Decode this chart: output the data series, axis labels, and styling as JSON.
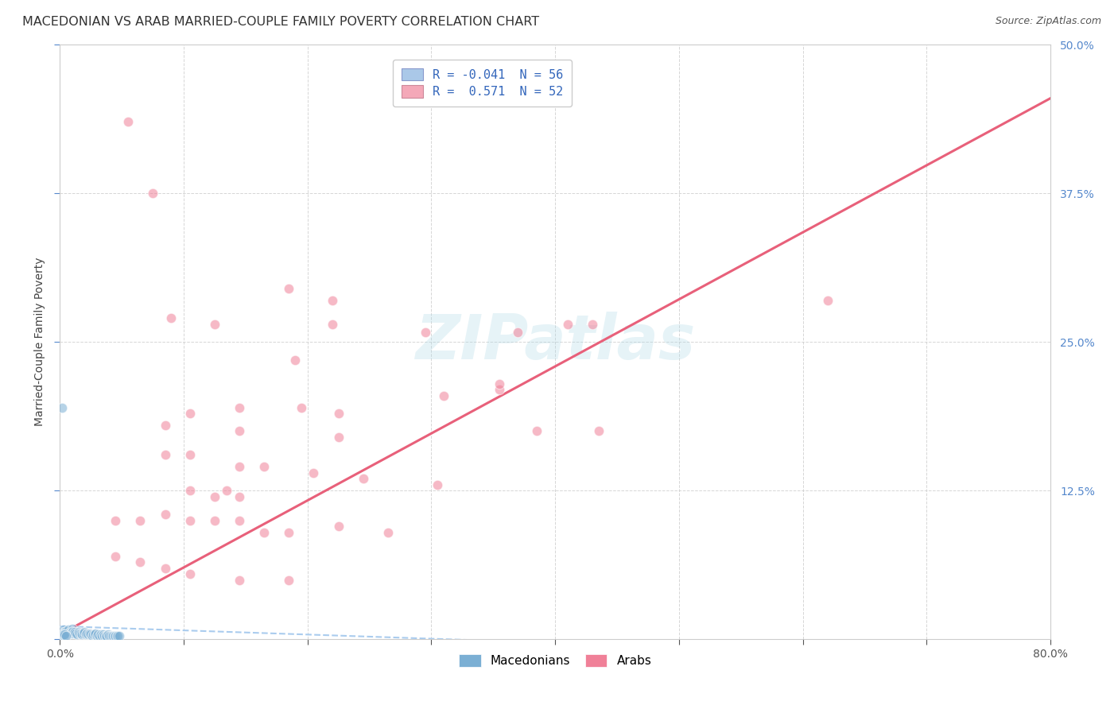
{
  "title": "MACEDONIAN VS ARAB MARRIED-COUPLE FAMILY POVERTY CORRELATION CHART",
  "source": "Source: ZipAtlas.com",
  "ylabel": "Married-Couple Family Poverty",
  "xlim": [
    0.0,
    0.8
  ],
  "ylim": [
    0.0,
    0.5
  ],
  "xticks": [
    0.0,
    0.1,
    0.2,
    0.3,
    0.4,
    0.5,
    0.6,
    0.7,
    0.8
  ],
  "yticks": [
    0.0,
    0.125,
    0.25,
    0.375,
    0.5
  ],
  "macedonian_color": "#7bafd4",
  "arab_color": "#f08098",
  "macedonian_line_color": "#aaccee",
  "arab_line_color": "#e8607a",
  "watermark": "ZIPatlas",
  "background_color": "#ffffff",
  "grid_color": "#cccccc",
  "legend_label_mac": "R = -0.041  N = 56",
  "legend_label_arab": "R =  0.571  N = 52",
  "legend_mac_color": "#aac8e8",
  "legend_arab_color": "#f4a8b8",
  "tick_color_y": "#5588cc",
  "tick_color_x": "#555555",
  "title_fontsize": 11.5,
  "axis_label_fontsize": 10,
  "tick_fontsize": 10,
  "legend_fontsize": 11,
  "arab_line_x0": 0.0,
  "arab_line_y0": 0.004,
  "arab_line_x1": 0.8,
  "arab_line_y1": 0.455,
  "mac_line_x0": 0.0,
  "mac_line_y0": 0.011,
  "mac_line_x1": 0.6,
  "mac_line_y1": -0.01,
  "macedonian_scatter": [
    [
      0.002,
      0.195
    ],
    [
      0.003,
      0.008
    ],
    [
      0.004,
      0.006
    ],
    [
      0.005,
      0.007
    ],
    [
      0.006,
      0.005
    ],
    [
      0.007,
      0.008
    ],
    [
      0.008,
      0.006
    ],
    [
      0.009,
      0.005
    ],
    [
      0.01,
      0.009
    ],
    [
      0.01,
      0.007
    ],
    [
      0.01,
      0.006
    ],
    [
      0.011,
      0.005
    ],
    [
      0.012,
      0.006
    ],
    [
      0.013,
      0.005
    ],
    [
      0.014,
      0.004
    ],
    [
      0.015,
      0.006
    ],
    [
      0.016,
      0.005
    ],
    [
      0.017,
      0.005
    ],
    [
      0.018,
      0.004
    ],
    [
      0.019,
      0.005
    ],
    [
      0.02,
      0.006
    ],
    [
      0.021,
      0.004
    ],
    [
      0.022,
      0.005
    ],
    [
      0.023,
      0.004
    ],
    [
      0.024,
      0.005
    ],
    [
      0.025,
      0.004
    ],
    [
      0.026,
      0.003
    ],
    [
      0.027,
      0.004
    ],
    [
      0.028,
      0.004
    ],
    [
      0.029,
      0.005
    ],
    [
      0.03,
      0.003
    ],
    [
      0.031,
      0.004
    ],
    [
      0.032,
      0.003
    ],
    [
      0.033,
      0.004
    ],
    [
      0.034,
      0.003
    ],
    [
      0.035,
      0.004
    ],
    [
      0.036,
      0.003
    ],
    [
      0.037,
      0.003
    ],
    [
      0.038,
      0.003
    ],
    [
      0.039,
      0.004
    ],
    [
      0.04,
      0.003
    ],
    [
      0.041,
      0.003
    ],
    [
      0.042,
      0.003
    ],
    [
      0.043,
      0.003
    ],
    [
      0.044,
      0.003
    ],
    [
      0.045,
      0.003
    ],
    [
      0.046,
      0.003
    ],
    [
      0.047,
      0.003
    ],
    [
      0.048,
      0.003
    ],
    [
      0.002,
      0.003
    ],
    [
      0.002,
      0.004
    ],
    [
      0.003,
      0.003
    ],
    [
      0.003,
      0.004
    ],
    [
      0.004,
      0.003
    ],
    [
      0.004,
      0.004
    ],
    [
      0.005,
      0.003
    ]
  ],
  "arab_scatter": [
    [
      0.055,
      0.435
    ],
    [
      0.075,
      0.375
    ],
    [
      0.185,
      0.295
    ],
    [
      0.22,
      0.285
    ],
    [
      0.09,
      0.27
    ],
    [
      0.125,
      0.265
    ],
    [
      0.22,
      0.265
    ],
    [
      0.43,
      0.265
    ],
    [
      0.37,
      0.258
    ],
    [
      0.295,
      0.258
    ],
    [
      0.19,
      0.235
    ],
    [
      0.31,
      0.205
    ],
    [
      0.355,
      0.21
    ],
    [
      0.355,
      0.215
    ],
    [
      0.41,
      0.265
    ],
    [
      0.62,
      0.285
    ],
    [
      0.105,
      0.19
    ],
    [
      0.145,
      0.195
    ],
    [
      0.195,
      0.195
    ],
    [
      0.225,
      0.19
    ],
    [
      0.085,
      0.18
    ],
    [
      0.145,
      0.175
    ],
    [
      0.225,
      0.17
    ],
    [
      0.085,
      0.155
    ],
    [
      0.105,
      0.155
    ],
    [
      0.145,
      0.145
    ],
    [
      0.165,
      0.145
    ],
    [
      0.205,
      0.14
    ],
    [
      0.245,
      0.135
    ],
    [
      0.105,
      0.125
    ],
    [
      0.135,
      0.125
    ],
    [
      0.125,
      0.12
    ],
    [
      0.145,
      0.12
    ],
    [
      0.305,
      0.13
    ],
    [
      0.045,
      0.1
    ],
    [
      0.065,
      0.1
    ],
    [
      0.085,
      0.105
    ],
    [
      0.105,
      0.1
    ],
    [
      0.125,
      0.1
    ],
    [
      0.145,
      0.1
    ],
    [
      0.165,
      0.09
    ],
    [
      0.185,
      0.09
    ],
    [
      0.225,
      0.095
    ],
    [
      0.265,
      0.09
    ],
    [
      0.435,
      0.175
    ],
    [
      0.385,
      0.175
    ],
    [
      0.045,
      0.07
    ],
    [
      0.065,
      0.065
    ],
    [
      0.085,
      0.06
    ],
    [
      0.105,
      0.055
    ],
    [
      0.145,
      0.05
    ],
    [
      0.185,
      0.05
    ]
  ]
}
